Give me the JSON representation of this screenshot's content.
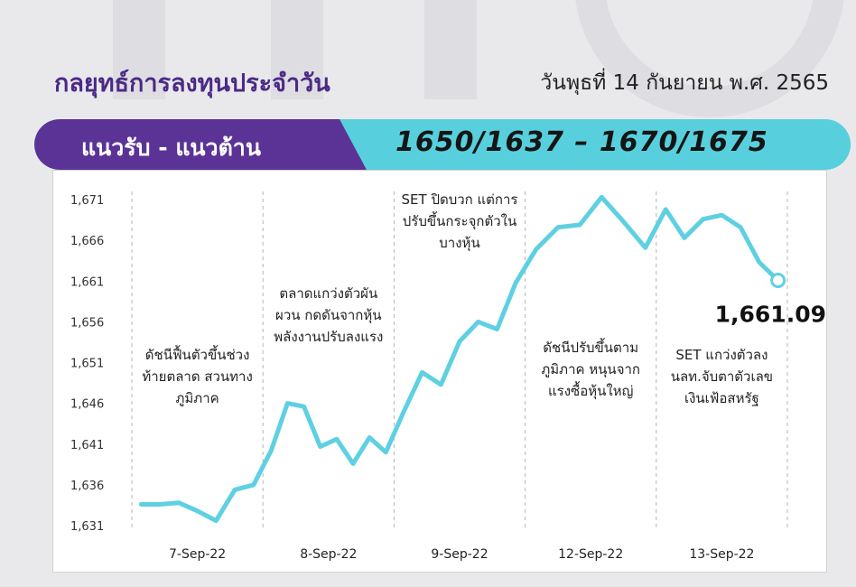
{
  "header": {
    "title": "กลยุทธ์การลงทุนประจำวัน",
    "date": "วันพุธที่ 14 กันยายน พ.ศ. 2565"
  },
  "band": {
    "label": "แนวรับ - แนวต้าน",
    "value": "1650/1637  –  1670/1675"
  },
  "colors": {
    "title": "#4b2a86",
    "band_left": "#5b3397",
    "band_right": "#58cfdc",
    "line": "#5fd0e2",
    "grid": "#b5b5b5"
  },
  "chart_data": {
    "type": "line",
    "title": "",
    "xlabel": "",
    "ylabel": "",
    "ylim": [
      1631,
      1672
    ],
    "yticks": [
      1631,
      1636,
      1641,
      1646,
      1651,
      1656,
      1661,
      1666,
      1671
    ],
    "ytick_labels": [
      "1,631",
      "1,636",
      "1,641",
      "1,646",
      "1,651",
      "1,656",
      "1,661",
      "1,666",
      "1,671"
    ],
    "grid": "vertical dashed separators between days",
    "day_labels": [
      "7-Sep-22",
      "8-Sep-22",
      "9-Sep-22",
      "12-Sep-22",
      "13-Sep-22"
    ],
    "series": [
      {
        "values": [
          1633.6,
          1633.6,
          1633.8,
          1632.8,
          1631.6,
          1635.4,
          1636.0,
          1640.2,
          1646.0,
          1645.6,
          1640.7,
          1641.6,
          1638.6,
          1641.8,
          1640.0,
          1644.9,
          1649.8,
          1648.3,
          1653.6,
          1656.0,
          1655.1,
          1660.8,
          1664.9,
          1667.6,
          1667.9,
          1671.3,
          1668.3,
          1665.1,
          1669.8,
          1666.3,
          1668.6,
          1669.1,
          1667.6,
          1663.3,
          1661.09
        ],
        "day_index": [
          0,
          0,
          0,
          0,
          0,
          0,
          0,
          1,
          1,
          1,
          1,
          1,
          1,
          1,
          1,
          2,
          2,
          2,
          2,
          2,
          2,
          2,
          3,
          3,
          3,
          3,
          3,
          3,
          4,
          4,
          4,
          4,
          4,
          4,
          4
        ]
      }
    ],
    "annotations": [
      {
        "day": 0,
        "lines": [
          "ดัชนีฟื้นตัวขึ้นช่วง",
          "ท้ายตลาด สวนทาง",
          "ภูมิภาค"
        ]
      },
      {
        "day": 1,
        "lines": [
          "ตลาดแกว่งตัวผัน",
          "ผวน กดดันจากหุ้น",
          "พลังงานปรับลงแรง"
        ]
      },
      {
        "day": 2,
        "lines": [
          "SET ปิดบวก แต่การ",
          "ปรับขึ้นกระจุกตัวใน",
          "บางหุ้น"
        ]
      },
      {
        "day": 3,
        "lines": [
          "ดัชนีปรับขึ้นตาม",
          "ภูมิภาค หนุนจาก",
          "แรงซื้อหุ้นใหญ่"
        ]
      },
      {
        "day": 4,
        "lines": [
          "SET แกว่งตัวลง",
          "นลท.จับตาตัวเลข",
          "เงินเฟ้อสหรัฐ"
        ]
      }
    ],
    "last_value_label": "1,661.09"
  }
}
